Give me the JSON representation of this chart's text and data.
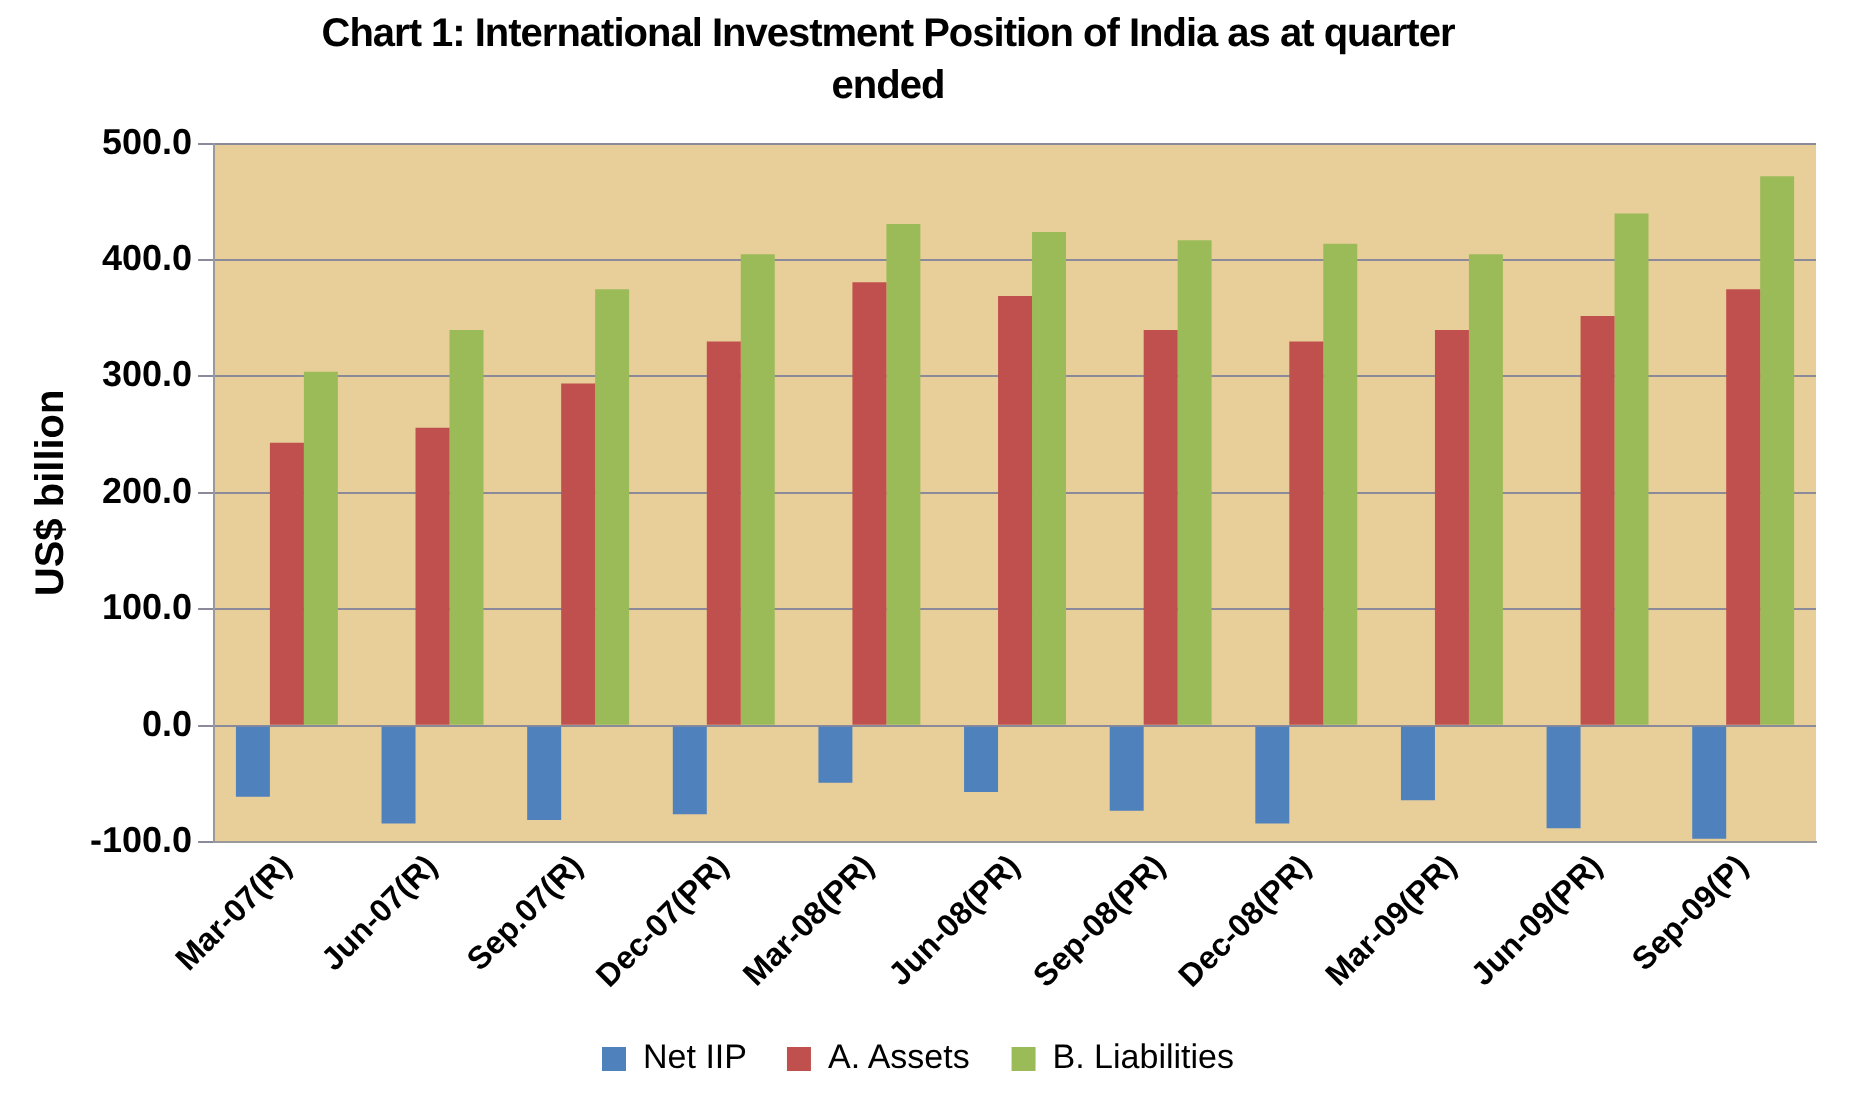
{
  "chart_data": {
    "type": "bar",
    "title": "Chart 1: International Investment Position of India as at quarter ended",
    "ylabel": "US$ billion",
    "categories": [
      "Mar-07(R)",
      "Jun-07(R)",
      "Sep.07(R)",
      "Dec-07(PR)",
      "Mar-08(PR)",
      "Jun-08(PR)",
      "Sep-08(PR)",
      "Dec-08(PR)",
      "Mar-09(PR)",
      "Jun-09(PR)",
      "Sep-09(P)"
    ],
    "series": [
      {
        "name": "Net IIP",
        "color": "#4f81bd",
        "values": [
          -61,
          -84,
          -81,
          -76,
          -49,
          -57,
          -73,
          -84,
          -64,
          -88,
          -97
        ]
      },
      {
        "name": "A. Assets",
        "color": "#c0504d",
        "values": [
          243,
          256,
          294,
          330,
          381,
          369,
          340,
          330,
          340,
          352,
          375
        ]
      },
      {
        "name": "B. Liabilities",
        "color": "#9bbb59",
        "values": [
          304,
          340,
          375,
          405,
          431,
          424,
          417,
          414,
          405,
          440,
          472
        ]
      }
    ],
    "ylim": [
      -100,
      500
    ],
    "yticks": [
      {
        "value": -100,
        "label": "-100.0"
      },
      {
        "value": 0,
        "label": "0.0"
      },
      {
        "value": 100,
        "label": "100.0"
      },
      {
        "value": 200,
        "label": "200.0"
      },
      {
        "value": 300,
        "label": "300.0"
      },
      {
        "value": 400,
        "label": "400.0"
      },
      {
        "value": 500,
        "label": "500.0"
      }
    ],
    "grid": "y",
    "legend": "bottom"
  }
}
